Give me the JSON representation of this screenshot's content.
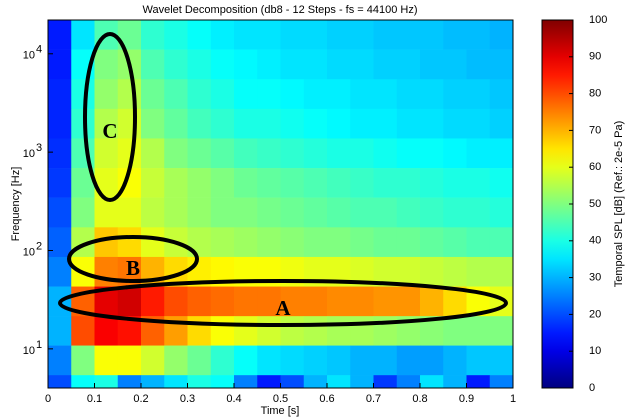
{
  "chart_data": {
    "type": "heatmap",
    "title": "Wavelet Decomposition (db8 - 12 Steps - fs = 44100 Hz)",
    "xlabel": "Time [s]",
    "ylabel": "Frequency [Hz]",
    "colorbar_label": "Temporal SPL [dB] (Ref.: 2e-5 Pa)",
    "colormap": "jet",
    "yscale": "log",
    "xlim": [
      0,
      1
    ],
    "xticks": [
      0,
      0.1,
      0.2,
      0.3,
      0.4,
      0.5,
      0.6,
      0.7,
      0.8,
      0.9,
      1
    ],
    "ylim": [
      4,
      22050
    ],
    "yticks": [
      {
        "value": 10,
        "label": "10",
        "exponent": "1"
      },
      {
        "value": 100,
        "label": "10",
        "exponent": "2"
      },
      {
        "value": 1000,
        "label": "10",
        "exponent": "3"
      },
      {
        "value": 10000,
        "label": "10",
        "exponent": "4"
      }
    ],
    "zlim": [
      0,
      100
    ],
    "zticks": [
      0,
      10,
      20,
      30,
      40,
      50,
      60,
      70,
      80,
      90,
      100
    ],
    "x_bins": [
      0,
      0.05,
      0.1,
      0.15,
      0.2,
      0.25,
      0.3,
      0.35,
      0.4,
      0.45,
      0.5,
      0.55,
      0.6,
      0.65,
      0.7,
      0.75,
      0.8,
      0.85,
      0.9,
      0.95,
      1
    ],
    "y_bins": [
      22050,
      11025,
      5512,
      2756,
      1378,
      689,
      345,
      172,
      86,
      43,
      21.5,
      10.8,
      5.4,
      4
    ],
    "z": [
      [
        15,
        35,
        45,
        48,
        42,
        40,
        38,
        36,
        35,
        35,
        34,
        34,
        33,
        33,
        32,
        32,
        32,
        31,
        31,
        30
      ],
      [
        15,
        38,
        50,
        52,
        45,
        42,
        40,
        38,
        37,
        36,
        35,
        35,
        34,
        34,
        33,
        33,
        32,
        32,
        31,
        31
      ],
      [
        16,
        40,
        52,
        55,
        48,
        45,
        42,
        40,
        38,
        38,
        37,
        36,
        36,
        35,
        35,
        34,
        34,
        33,
        33,
        32
      ],
      [
        16,
        42,
        55,
        58,
        50,
        47,
        44,
        42,
        40,
        40,
        39,
        38,
        37,
        36,
        36,
        35,
        35,
        34,
        34,
        33
      ],
      [
        17,
        45,
        58,
        60,
        55,
        50,
        48,
        46,
        44,
        43,
        42,
        41,
        40,
        40,
        39,
        38,
        38,
        37,
        36,
        36
      ],
      [
        18,
        48,
        60,
        62,
        57,
        54,
        52,
        50,
        48,
        47,
        46,
        45,
        44,
        43,
        42,
        42,
        41,
        40,
        40,
        39
      ],
      [
        20,
        50,
        60,
        60,
        56,
        54,
        52,
        50,
        50,
        49,
        48,
        47,
        46,
        45,
        45,
        44,
        43,
        42,
        42,
        41
      ],
      [
        22,
        55,
        68,
        66,
        60,
        57,
        55,
        54,
        53,
        52,
        51,
        50,
        50,
        49,
        48,
        48,
        47,
        46,
        45,
        45
      ],
      [
        25,
        62,
        75,
        76,
        70,
        66,
        64,
        63,
        62,
        62,
        61,
        60,
        60,
        59,
        58,
        58,
        57,
        56,
        55,
        55
      ],
      [
        30,
        78,
        90,
        92,
        85,
        80,
        78,
        77,
        76,
        76,
        75,
        75,
        74,
        74,
        73,
        73,
        70,
        66,
        62,
        60
      ],
      [
        30,
        80,
        88,
        86,
        78,
        72,
        66,
        62,
        60,
        58,
        56,
        55,
        54,
        54,
        53,
        52,
        51,
        50,
        50,
        50
      ],
      [
        25,
        50,
        62,
        62,
        58,
        52,
        48,
        42,
        38,
        35,
        34,
        33,
        32,
        30,
        30,
        28,
        28,
        30,
        32,
        32
      ],
      [
        20,
        38,
        40,
        25,
        30,
        35,
        40,
        38,
        25,
        15,
        20,
        30,
        35,
        30,
        18,
        25,
        35,
        30,
        15,
        25
      ]
    ],
    "annotations": [
      {
        "text": "C"
      },
      {
        "text": "B"
      },
      {
        "text": "A"
      }
    ]
  }
}
